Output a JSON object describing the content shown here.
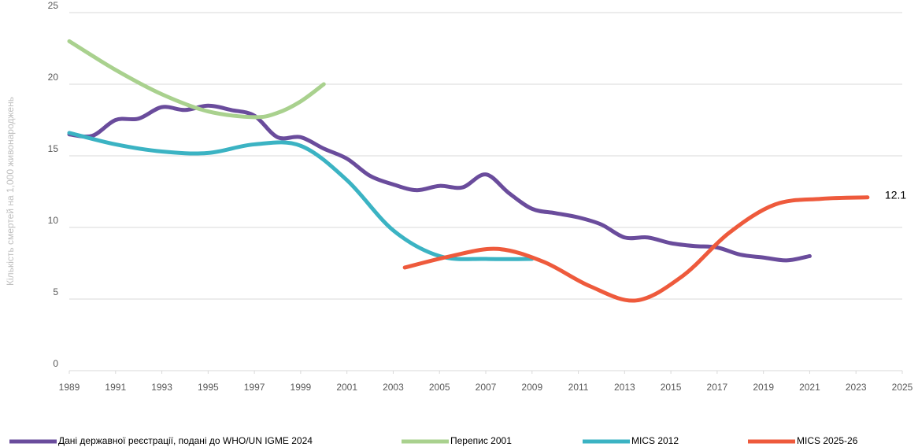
{
  "chart_data": {
    "type": "line",
    "y_label": "Кількість смертей на 1,000 живонароджень",
    "xlim": [
      1989,
      2025
    ],
    "xticks": [
      1989,
      1991,
      1993,
      1995,
      1997,
      1999,
      2001,
      2003,
      2005,
      2007,
      2009,
      2011,
      2013,
      2015,
      2017,
      2019,
      2021,
      2023,
      2025
    ],
    "ylim": [
      0,
      25
    ],
    "yticks": [
      0,
      5,
      10,
      15,
      20,
      25
    ],
    "grid": true,
    "legend": "bottom",
    "series": [
      {
        "name": "Дані державної реєстрації, подані до WHO/UN IGME 2024",
        "color": "#6a4c9c",
        "x": [
          1989,
          1990,
          1991,
          1992,
          1993,
          1994,
          1995,
          1996,
          1997,
          1998,
          1999,
          2000,
          2001,
          2002,
          2003,
          2004,
          2005,
          2006,
          2007,
          2008,
          2009,
          2010,
          2011,
          2012,
          2013,
          2014,
          2015,
          2016,
          2017,
          2018,
          2019,
          2020,
          2021
        ],
        "values": [
          16.5,
          16.4,
          17.5,
          17.6,
          18.4,
          18.2,
          18.5,
          18.2,
          17.8,
          16.3,
          16.3,
          15.5,
          14.8,
          13.6,
          13.0,
          12.6,
          12.9,
          12.8,
          13.7,
          12.4,
          11.3,
          11.0,
          10.7,
          10.2,
          9.3,
          9.3,
          8.9,
          8.7,
          8.6,
          8.1,
          7.9,
          7.7,
          8.0
        ]
      },
      {
        "name": "Перепис 2001",
        "color": "#a9d18e",
        "x": [
          1989,
          1991,
          1993,
          1995,
          1997,
          1998,
          1999,
          2000
        ],
        "values": [
          23.0,
          21.0,
          19.3,
          18.1,
          17.7,
          18.0,
          18.8,
          20.0
        ]
      },
      {
        "name": "MICS 2012",
        "color": "#3bb3c3",
        "x": [
          1989,
          1991,
          1993,
          1995,
          1997,
          1999,
          2001,
          2003,
          2005,
          2007,
          2009
        ],
        "values": [
          16.6,
          15.8,
          15.3,
          15.2,
          15.8,
          15.7,
          13.3,
          9.8,
          8.0,
          7.8,
          7.8
        ]
      },
      {
        "name": "MICS 2025-26",
        "color": "#ee5a3c",
        "x": [
          2003.5,
          2005.5,
          2007.5,
          2009.5,
          2011.5,
          2013.5,
          2015.5,
          2017.5,
          2019.5,
          2021.5,
          2023.5
        ],
        "values": [
          7.2,
          8.0,
          8.5,
          7.6,
          5.9,
          4.9,
          6.6,
          9.6,
          11.6,
          12.0,
          12.1
        ]
      }
    ]
  }
}
